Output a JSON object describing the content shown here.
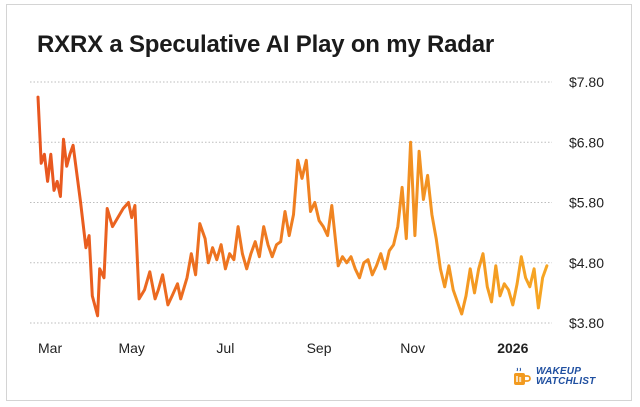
{
  "title": "RXRX a Speculative AI Play on my Radar",
  "brand": {
    "line1": "WAKEUP",
    "line2": "WATCHLIST",
    "icon": "mug-icon"
  },
  "colors": {
    "line_start": "#e8561f",
    "line_end": "#f6a623",
    "grid": "#bdbdbd",
    "text": "#222222",
    "brand": "#1f4fa0"
  },
  "chart_data": {
    "type": "line",
    "title": "RXRX a Speculative AI Play on my Radar",
    "xlabel": "",
    "ylabel": "",
    "x_ticks": [
      {
        "label": "Mar",
        "x": 0
      },
      {
        "label": "May",
        "x": 44
      },
      {
        "label": "Jul",
        "x": 88
      },
      {
        "label": "Sep",
        "x": 132
      },
      {
        "label": "Nov",
        "x": 176
      },
      {
        "label": "2026",
        "x": 223,
        "bold": true
      }
    ],
    "xlim": [
      0,
      240
    ],
    "y_ticks": [
      "$3.80",
      "$4.80",
      "$5.80",
      "$6.80",
      "$7.80"
    ],
    "y_tick_values": [
      3.8,
      4.8,
      5.8,
      6.8,
      7.8
    ],
    "ylim": [
      3.8,
      7.8
    ],
    "grid": "horizontal",
    "y_axis_position": "right",
    "series": [
      {
        "values": [
          [
            0,
            7.55
          ],
          [
            1.5,
            6.45
          ],
          [
            3,
            6.6
          ],
          [
            4.5,
            6.15
          ],
          [
            6,
            6.6
          ],
          [
            7.5,
            6.0
          ],
          [
            9,
            6.15
          ],
          [
            10.5,
            5.9
          ],
          [
            12,
            6.85
          ],
          [
            13.5,
            6.4
          ],
          [
            15,
            6.6
          ],
          [
            16.5,
            6.75
          ],
          [
            20,
            5.8
          ],
          [
            22.5,
            5.05
          ],
          [
            24,
            5.25
          ],
          [
            25.5,
            4.25
          ],
          [
            27,
            4.05
          ],
          [
            28,
            3.92
          ],
          [
            29,
            4.7
          ],
          [
            31,
            4.55
          ],
          [
            32.5,
            5.7
          ],
          [
            35,
            5.4
          ],
          [
            37.5,
            5.55
          ],
          [
            40,
            5.7
          ],
          [
            42.5,
            5.8
          ],
          [
            44,
            5.55
          ],
          [
            45.5,
            5.75
          ],
          [
            47.5,
            4.2
          ],
          [
            50,
            4.35
          ],
          [
            52.5,
            4.65
          ],
          [
            55,
            4.2
          ],
          [
            56.5,
            4.35
          ],
          [
            58.5,
            4.6
          ],
          [
            61,
            4.1
          ],
          [
            63,
            4.25
          ],
          [
            65.5,
            4.45
          ],
          [
            67,
            4.2
          ],
          [
            70,
            4.55
          ],
          [
            72,
            4.95
          ],
          [
            74,
            4.6
          ],
          [
            76,
            5.45
          ],
          [
            78.5,
            5.2
          ],
          [
            80,
            4.8
          ],
          [
            82,
            5.05
          ],
          [
            84,
            4.85
          ],
          [
            86,
            5.1
          ],
          [
            88,
            4.7
          ],
          [
            90,
            4.95
          ],
          [
            92,
            4.85
          ],
          [
            94,
            5.4
          ],
          [
            96,
            4.95
          ],
          [
            98,
            4.7
          ],
          [
            100,
            4.95
          ],
          [
            102,
            5.15
          ],
          [
            104,
            4.9
          ],
          [
            106,
            5.4
          ],
          [
            108,
            5.1
          ],
          [
            110,
            4.9
          ],
          [
            112,
            5.1
          ],
          [
            114,
            5.15
          ],
          [
            116,
            5.65
          ],
          [
            118,
            5.25
          ],
          [
            120,
            5.6
          ],
          [
            122,
            6.5
          ],
          [
            124,
            6.2
          ],
          [
            126,
            6.5
          ],
          [
            128,
            5.65
          ],
          [
            130,
            5.8
          ],
          [
            132,
            5.5
          ],
          [
            134,
            5.4
          ],
          [
            136,
            5.25
          ],
          [
            138,
            5.75
          ],
          [
            141,
            4.75
          ],
          [
            143,
            4.9
          ],
          [
            145,
            4.8
          ],
          [
            147,
            4.9
          ],
          [
            149,
            4.7
          ],
          [
            151,
            4.55
          ],
          [
            153,
            4.8
          ],
          [
            155,
            4.85
          ],
          [
            157,
            4.6
          ],
          [
            159,
            4.75
          ],
          [
            161,
            4.95
          ],
          [
            163,
            4.7
          ],
          [
            165,
            5.0
          ],
          [
            167,
            5.1
          ],
          [
            169,
            5.4
          ],
          [
            171,
            6.05
          ],
          [
            173,
            5.2
          ],
          [
            175,
            6.8
          ],
          [
            177,
            5.25
          ],
          [
            179,
            6.65
          ],
          [
            181,
            5.85
          ],
          [
            183,
            6.25
          ],
          [
            185,
            5.6
          ],
          [
            187,
            5.2
          ],
          [
            189,
            4.7
          ],
          [
            191,
            4.4
          ],
          [
            193,
            4.75
          ],
          [
            195,
            4.35
          ],
          [
            197,
            4.15
          ],
          [
            199,
            3.95
          ],
          [
            201,
            4.25
          ],
          [
            203,
            4.7
          ],
          [
            205,
            4.3
          ],
          [
            207,
            4.7
          ],
          [
            209,
            4.95
          ],
          [
            211,
            4.4
          ],
          [
            213,
            4.15
          ],
          [
            215,
            4.75
          ],
          [
            217,
            4.25
          ],
          [
            219,
            4.45
          ],
          [
            221,
            4.35
          ],
          [
            223,
            4.1
          ],
          [
            225,
            4.45
          ],
          [
            227,
            4.9
          ],
          [
            229,
            4.55
          ],
          [
            231,
            4.4
          ],
          [
            233,
            4.7
          ],
          [
            235,
            4.05
          ],
          [
            237,
            4.55
          ],
          [
            239,
            4.75
          ]
        ]
      }
    ]
  }
}
